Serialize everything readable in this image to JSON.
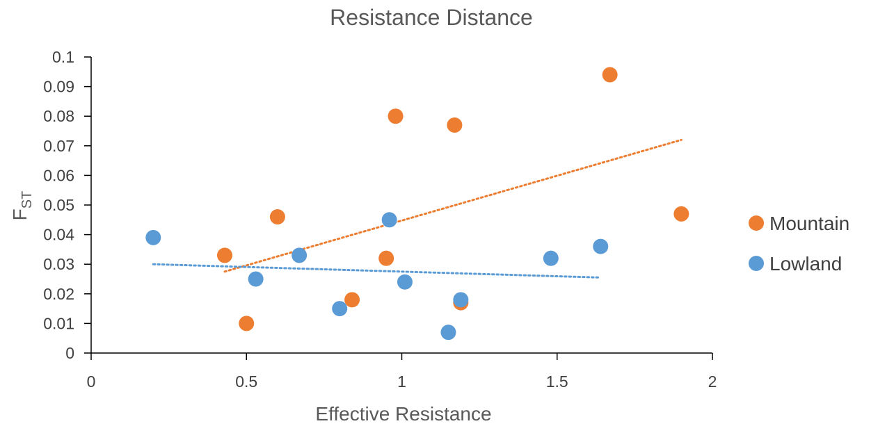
{
  "chart_data": {
    "type": "scatter",
    "title": "Resistance Distance",
    "xlabel": "Effective Resistance",
    "ylabel": "F",
    "ylabel_sub": "ST",
    "xlim": [
      0,
      2
    ],
    "ylim": [
      0,
      0.1
    ],
    "x_ticks": [
      "0",
      "0.5",
      "1",
      "1.5",
      "2"
    ],
    "y_ticks": [
      "0",
      "0.01",
      "0.02",
      "0.03",
      "0.04",
      "0.05",
      "0.06",
      "0.07",
      "0.08",
      "0.09",
      "0.1"
    ],
    "legend_position": "right",
    "grid": false,
    "series": [
      {
        "name": "Mountain",
        "color": "#ED7D31",
        "points": [
          [
            0.43,
            0.033
          ],
          [
            0.5,
            0.01
          ],
          [
            0.6,
            0.046
          ],
          [
            0.84,
            0.018
          ],
          [
            0.95,
            0.032
          ],
          [
            0.98,
            0.08
          ],
          [
            1.19,
            0.017
          ],
          [
            1.17,
            0.077
          ],
          [
            1.67,
            0.094
          ],
          [
            1.9,
            0.047
          ]
        ],
        "trendline": {
          "x": [
            0.43,
            1.9
          ],
          "y": [
            0.0275,
            0.072
          ]
        }
      },
      {
        "name": "Lowland",
        "color": "#5B9BD5",
        "points": [
          [
            0.2,
            0.039
          ],
          [
            0.53,
            0.025
          ],
          [
            0.67,
            0.033
          ],
          [
            0.8,
            0.015
          ],
          [
            0.96,
            0.045
          ],
          [
            1.01,
            0.024
          ],
          [
            1.15,
            0.007
          ],
          [
            1.19,
            0.018
          ],
          [
            1.48,
            0.032
          ],
          [
            1.64,
            0.036
          ]
        ],
        "trendline": {
          "x": [
            0.2,
            1.64
          ],
          "y": [
            0.03,
            0.0255
          ]
        }
      }
    ]
  }
}
